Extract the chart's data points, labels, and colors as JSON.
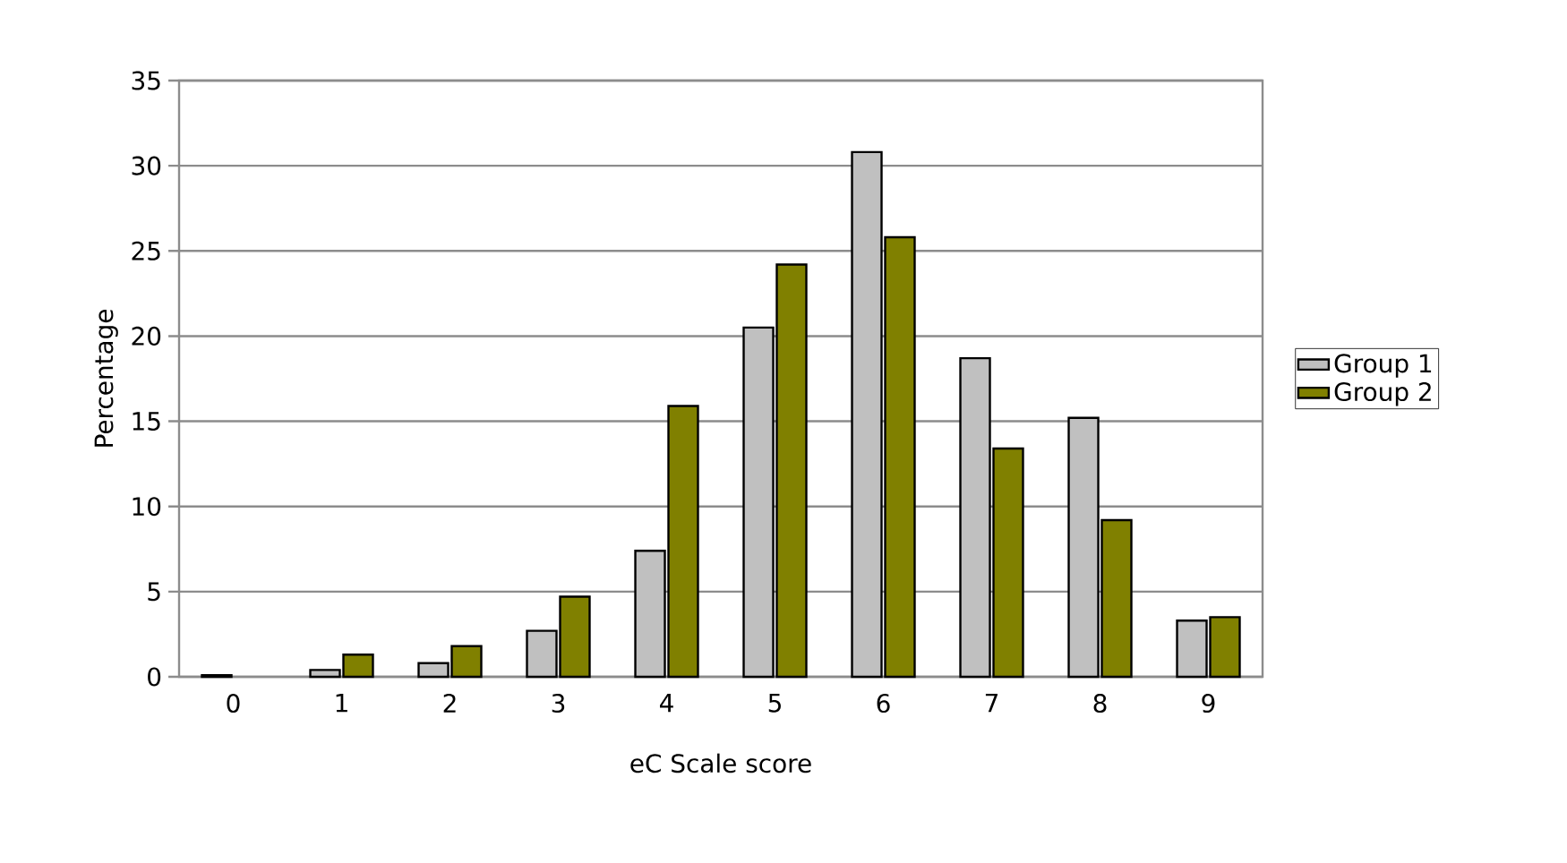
{
  "chart_data": {
    "type": "bar",
    "xlabel": "eC Scale score",
    "ylabel": "Percentage",
    "categories": [
      "0",
      "1",
      "2",
      "3",
      "4",
      "5",
      "6",
      "7",
      "8",
      "9"
    ],
    "series": [
      {
        "name": "Group 1",
        "color": "#c0c0c0",
        "values": [
          0.1,
          0.4,
          0.8,
          2.7,
          7.4,
          20.5,
          30.8,
          18.7,
          15.2,
          3.3
        ]
      },
      {
        "name": "Group 2",
        "color": "#808000",
        "values": [
          null,
          1.3,
          1.8,
          4.7,
          15.9,
          24.2,
          25.8,
          13.4,
          9.2,
          3.5
        ]
      }
    ],
    "ylim": [
      0,
      35
    ],
    "yticks": [
      0,
      5,
      10,
      15,
      20,
      25,
      30,
      35
    ],
    "grid": "y",
    "legend": "right"
  }
}
